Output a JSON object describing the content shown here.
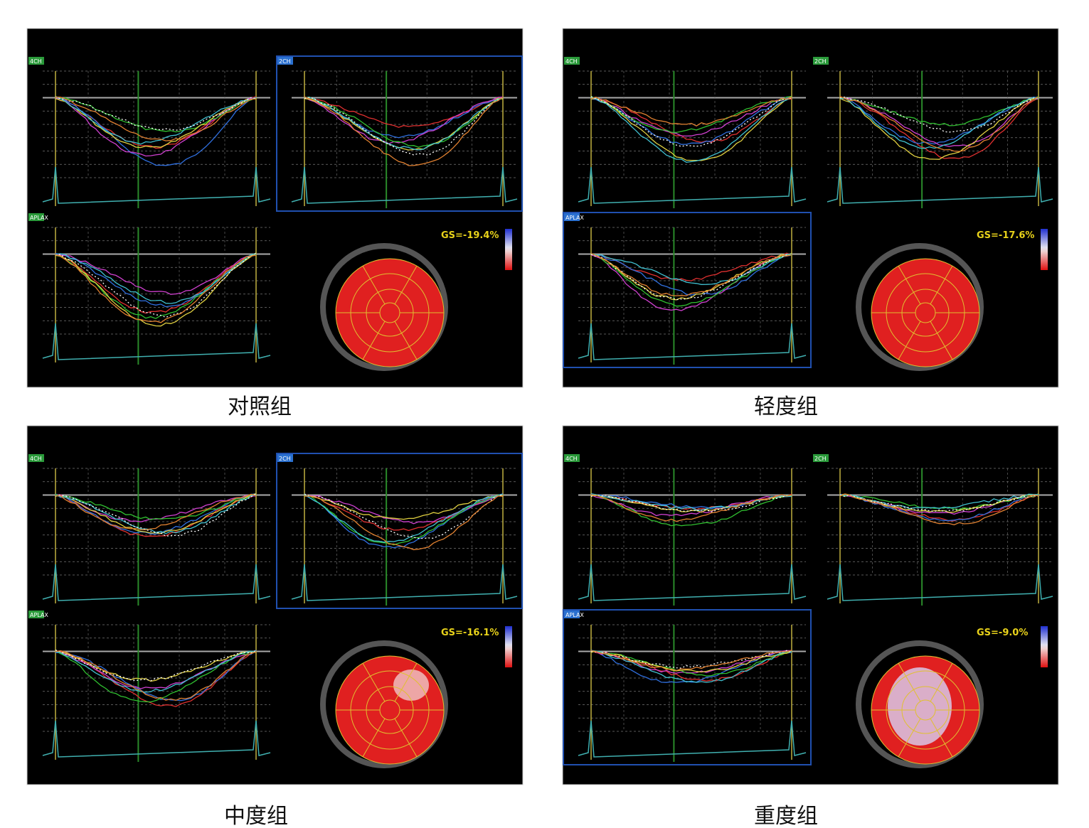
{
  "panels": [
    {
      "caption": "对照组",
      "gs": "GS=-19.4%",
      "views": [
        "4CH",
        "2CH",
        "APLAX"
      ]
    },
    {
      "caption": "轻度组",
      "gs": "GS=-17.6%",
      "views": [
        "4CH",
        "2CH",
        "APLAX"
      ]
    },
    {
      "caption": "中度组",
      "gs": "GS=-16.1%",
      "views": [
        "4CH",
        "2CH",
        "APLAX"
      ]
    },
    {
      "caption": "重度组",
      "gs": "GS=-9.0%",
      "views": [
        "4CH",
        "2CH",
        "APLAX"
      ]
    }
  ]
}
